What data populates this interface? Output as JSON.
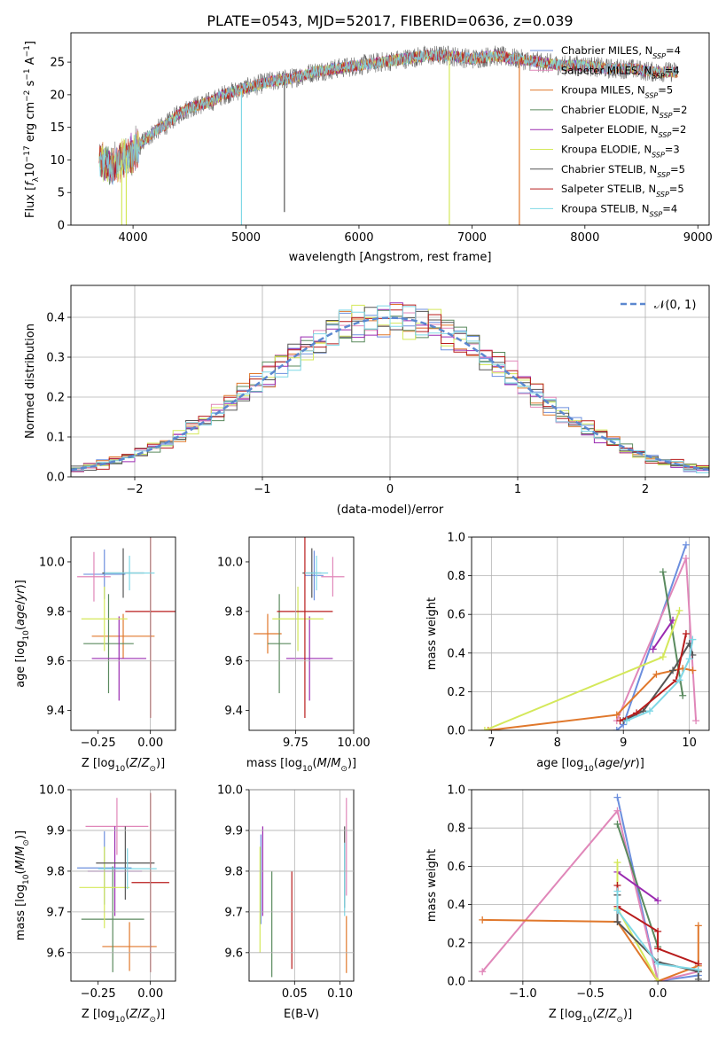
{
  "figure": {
    "title": "PLATE=0543, MJD=52017, FIBERID=0636, z=0.039"
  },
  "series_colors": {
    "chabrier_miles": "#6c8fde",
    "salpeter_miles": "#e087b9",
    "kroupa_miles": "#e0782c",
    "chabrier_elodie": "#5a8a5e",
    "salpeter_elodie": "#9a2ab0",
    "kroupa_elodie": "#d4e85a",
    "chabrier_stelib": "#555555",
    "salpeter_stelib": "#b81c1c",
    "kroupa_stelib": "#7fd8e6"
  },
  "chart_data": [
    {
      "type": "line",
      "title": "PLATE=0543, MJD=52017, FIBERID=0636, z=0.039",
      "xlabel": "wavelength [Angstrom, rest frame]",
      "ylabel": "Flux [f_λ 10^-17 erg cm^-2 s^-1 A^-1]",
      "xlim": [
        3450,
        9100
      ],
      "ylim": [
        0,
        29.5
      ],
      "xticks": [
        4000,
        5000,
        6000,
        7000,
        8000,
        9000
      ],
      "yticks": [
        0,
        5,
        10,
        15,
        20,
        25
      ],
      "legend_position": "right",
      "spectrum_envelope": {
        "x": [
          3700,
          3800,
          3900,
          4000,
          4100,
          4200,
          4300,
          4400,
          4500,
          4600,
          4700,
          4800,
          4900,
          5000,
          5200,
          5400,
          5600,
          5800,
          6000,
          6200,
          6400,
          6600,
          6800,
          7000,
          7200,
          7400,
          7600,
          7800,
          8000,
          8200,
          8400,
          8600,
          8800
        ],
        "y": [
          10,
          9,
          10,
          11,
          13,
          14.5,
          15.5,
          17,
          18,
          18.5,
          19,
          20,
          20.5,
          21,
          22,
          22.5,
          23.5,
          24,
          24.5,
          25,
          25.5,
          26,
          26,
          25.5,
          26,
          25.5,
          25,
          24.5,
          24.5,
          24,
          24,
          23.5,
          23.5
        ]
      },
      "series": [
        {
          "name": "Chabrier MILES, N_SSP=4",
          "color": "#6c8fde"
        },
        {
          "name": "Salpeter MILES, N_SSP=4",
          "color": "#e087b9"
        },
        {
          "name": "Kroupa MILES, N_SSP=5",
          "color": "#e0782c"
        },
        {
          "name": "Chabrier ELODIE, N_SSP=2",
          "color": "#5a8a5e"
        },
        {
          "name": "Salpeter ELODIE, N_SSP=2",
          "color": "#9a2ab0"
        },
        {
          "name": "Kroupa ELODIE, N_SSP=3",
          "color": "#d4e85a"
        },
        {
          "name": "Chabrier STELIB, N_SSP=5",
          "color": "#555555"
        },
        {
          "name": "Salpeter STELIB, N_SSP=5",
          "color": "#b81c1c"
        },
        {
          "name": "Kroupa STELIB, N_SSP=4",
          "color": "#7fd8e6"
        }
      ]
    },
    {
      "type": "line",
      "xlabel": "(data-model)/error",
      "ylabel": "Normed distribution",
      "xlim": [
        -2.5,
        2.5
      ],
      "ylim": [
        0,
        0.48
      ],
      "xticks": [
        -2,
        -1,
        0,
        1,
        2
      ],
      "yticks": [
        0.0,
        0.1,
        0.2,
        0.3,
        0.4
      ],
      "legend_label": "𝒩(0, 1)",
      "legend_position": "top-right",
      "grid": true,
      "histogram_bin_width": 0.1,
      "histogram_bin_start": -2.5
    },
    {
      "type": "scatter",
      "xlabel": "Z [log10(Z/Z⊙)]",
      "ylabel": "age  [log10(age/yr)]",
      "xlim": [
        -0.38,
        0.12
      ],
      "ylim": [
        9.32,
        10.1
      ],
      "xticks": [
        -0.25,
        0.0
      ],
      "yticks": [
        9.4,
        9.6,
        9.8,
        10.0
      ],
      "points": [
        {
          "series": "Chabrier MILES",
          "x": -0.22,
          "y": 9.95,
          "xerr": 0.1,
          "yerr": 0.1
        },
        {
          "series": "Salpeter MILES",
          "x": -0.27,
          "y": 9.94,
          "xerr": 0.08,
          "yerr": 0.1
        },
        {
          "series": "Kroupa MILES",
          "x": -0.13,
          "y": 9.7,
          "xerr": 0.15,
          "yerr": 0.09
        },
        {
          "series": "Chabrier ELODIE",
          "x": -0.2,
          "y": 9.67,
          "xerr": 0.12,
          "yerr": 0.2
        },
        {
          "series": "Salpeter ELODIE",
          "x": -0.15,
          "y": 9.61,
          "xerr": 0.13,
          "yerr": 0.17
        },
        {
          "series": "Kroupa ELODIE",
          "x": -0.22,
          "y": 9.77,
          "xerr": 0.11,
          "yerr": 0.13
        },
        {
          "series": "Chabrier STELIB",
          "x": -0.13,
          "y": 9.955,
          "xerr": 0.1,
          "yerr": 0.1
        },
        {
          "series": "Salpeter STELIB",
          "x": 0.0,
          "y": 9.8,
          "xerr": 0.12,
          "yerr": 0.43
        },
        {
          "series": "Kroupa STELIB",
          "x": -0.1,
          "y": 9.955,
          "xerr": 0.12,
          "yerr": 0.07
        }
      ]
    },
    {
      "type": "scatter",
      "xlabel": "mass [log10(M/M⊙)]",
      "ylabel": "",
      "xlim": [
        9.55,
        10.0
      ],
      "ylim": [
        9.32,
        10.1
      ],
      "xticks": [
        9.75,
        10.0
      ],
      "yticks": [
        9.4,
        9.6,
        9.8,
        10.0
      ],
      "points": [
        {
          "series": "Chabrier MILES",
          "x": 9.83,
          "y": 9.945,
          "xerr": 0.04,
          "yerr": 0.1
        },
        {
          "series": "Salpeter MILES",
          "x": 9.91,
          "y": 9.94,
          "xerr": 0.05,
          "yerr": 0.08
        },
        {
          "series": "Kroupa MILES",
          "x": 9.63,
          "y": 9.71,
          "xerr": 0.06,
          "yerr": 0.08
        },
        {
          "series": "Chabrier ELODIE",
          "x": 9.68,
          "y": 9.67,
          "xerr": 0.05,
          "yerr": 0.2
        },
        {
          "series": "Salpeter ELODIE",
          "x": 9.81,
          "y": 9.61,
          "xerr": 0.1,
          "yerr": 0.17
        },
        {
          "series": "Kroupa ELODIE",
          "x": 9.76,
          "y": 9.77,
          "xerr": 0.11,
          "yerr": 0.13
        },
        {
          "series": "Chabrier STELIB",
          "x": 9.82,
          "y": 9.955,
          "xerr": 0.04,
          "yerr": 0.1
        },
        {
          "series": "Salpeter STELIB",
          "x": 9.79,
          "y": 9.8,
          "xerr": 0.12,
          "yerr": 0.43
        },
        {
          "series": "Kroupa STELIB",
          "x": 9.84,
          "y": 9.955,
          "xerr": 0.05,
          "yerr": 0.07
        }
      ]
    },
    {
      "type": "line",
      "xlabel": "age  [log10(age/yr)]",
      "ylabel": "mass weight",
      "xlim": [
        6.7,
        10.3
      ],
      "ylim": [
        0,
        1.0
      ],
      "xticks": [
        7,
        8,
        9,
        10
      ],
      "yticks": [
        0.0,
        0.2,
        0.4,
        0.6,
        0.8,
        1.0
      ],
      "grid": true,
      "series": [
        {
          "name": "Chabrier MILES",
          "color": "#6c8fde",
          "x": [
            8.9,
            9.0,
            9.95
          ],
          "y": [
            0.0,
            0.03,
            0.96
          ]
        },
        {
          "name": "Salpeter MILES",
          "color": "#e087b9",
          "x": [
            8.9,
            9.95,
            10.1
          ],
          "y": [
            0.05,
            0.89,
            0.05
          ]
        },
        {
          "name": "Kroupa MILES",
          "color": "#e0782c",
          "x": [
            6.95,
            8.9,
            9.5,
            9.9,
            10.05
          ],
          "y": [
            0.0,
            0.08,
            0.29,
            0.32,
            0.31
          ]
        },
        {
          "name": "Chabrier ELODIE",
          "color": "#5a8a5e",
          "x": [
            9.6,
            9.9
          ],
          "y": [
            0.82,
            0.18
          ]
        },
        {
          "name": "Salpeter ELODIE",
          "color": "#9a2ab0",
          "x": [
            9.45,
            9.75
          ],
          "y": [
            0.42,
            0.57
          ]
        },
        {
          "name": "Kroupa ELODIE",
          "color": "#d4e85a",
          "x": [
            6.9,
            9.6,
            9.85
          ],
          "y": [
            0.0,
            0.38,
            0.62
          ]
        },
        {
          "name": "Chabrier STELIB",
          "color": "#555555",
          "x": [
            9.0,
            9.3,
            9.75,
            10.0,
            10.05
          ],
          "y": [
            0.05,
            0.1,
            0.31,
            0.45,
            0.39
          ]
        },
        {
          "name": "Salpeter STELIB",
          "color": "#b81c1c",
          "x": [
            8.95,
            9.2,
            9.8,
            9.95
          ],
          "y": [
            0.05,
            0.09,
            0.26,
            0.5
          ]
        },
        {
          "name": "Kroupa STELIB",
          "color": "#7fd8e6",
          "x": [
            9.05,
            9.4,
            9.85,
            10.0,
            10.05
          ],
          "y": [
            0.05,
            0.1,
            0.26,
            0.37,
            0.47
          ]
        }
      ]
    },
    {
      "type": "scatter",
      "xlabel": "Z [log10(Z/Z⊙)]",
      "ylabel": "mass [log10(M/M⊙)]",
      "xlim": [
        -0.38,
        0.12
      ],
      "ylim": [
        9.53,
        10.0
      ],
      "xticks": [
        -0.25,
        0.0
      ],
      "yticks": [
        9.6,
        9.7,
        9.8,
        9.9,
        10.0
      ],
      "points": [
        {
          "series": "Chabrier MILES",
          "x": -0.22,
          "y": 9.808,
          "xerr": 0.13,
          "yerr": 0.09
        },
        {
          "series": "Salpeter MILES",
          "x": -0.16,
          "y": 9.91,
          "xerr": 0.15,
          "yerr": 0.07
        },
        {
          "series": "Kroupa MILES",
          "x": -0.1,
          "y": 9.615,
          "xerr": 0.13,
          "yerr": 0.06
        },
        {
          "series": "Chabrier ELODIE",
          "x": -0.18,
          "y": 9.682,
          "xerr": 0.15,
          "yerr": 0.13
        },
        {
          "series": "Salpeter ELODIE",
          "x": -0.17,
          "y": 9.8,
          "xerr": 0.13,
          "yerr": 0.11
        },
        {
          "series": "Kroupa ELODIE",
          "x": -0.22,
          "y": 9.76,
          "xerr": 0.12,
          "yerr": 0.1
        },
        {
          "series": "Chabrier STELIB",
          "x": -0.12,
          "y": 9.82,
          "xerr": 0.14,
          "yerr": 0.09
        },
        {
          "series": "Salpeter STELIB",
          "x": 0.0,
          "y": 9.772,
          "xerr": 0.09,
          "yerr": 0.22
        },
        {
          "series": "Kroupa STELIB",
          "x": -0.11,
          "y": 9.806,
          "xerr": 0.14,
          "yerr": 0.05
        }
      ]
    },
    {
      "type": "scatter",
      "xlabel": "E(B-V)",
      "ylabel": "",
      "xlim": [
        0.0,
        0.115
      ],
      "ylim": [
        9.53,
        10.0
      ],
      "xticks": [
        0.05,
        0.1
      ],
      "yticks": [
        9.6,
        9.7,
        9.8,
        9.9,
        10.0
      ],
      "points": [
        {
          "series": "Chabrier MILES",
          "x": 0.013,
          "y": 9.78,
          "yerr": 0.11
        },
        {
          "series": "Salpeter MILES",
          "x": 0.107,
          "y": 9.86,
          "yerr": 0.12
        },
        {
          "series": "Kroupa MILES",
          "x": 0.107,
          "y": 9.62,
          "yerr": 0.07
        },
        {
          "series": "Chabrier ELODIE",
          "x": 0.025,
          "y": 9.67,
          "yerr": 0.13
        },
        {
          "series": "Salpeter ELODIE",
          "x": 0.015,
          "y": 9.8,
          "yerr": 0.11
        },
        {
          "series": "Kroupa ELODIE",
          "x": 0.012,
          "y": 9.73,
          "yerr": 0.13
        },
        {
          "series": "Chabrier STELIB",
          "x": 0.105,
          "y": 9.81,
          "yerr": 0.1
        },
        {
          "series": "Salpeter STELIB",
          "x": 0.047,
          "y": 9.68,
          "yerr": 0.12
        },
        {
          "series": "Kroupa STELIB",
          "x": 0.105,
          "y": 9.78,
          "yerr": 0.09
        }
      ]
    },
    {
      "type": "line",
      "xlabel": "Z [log10(Z/Z⊙)]",
      "ylabel": "mass weight",
      "xlim": [
        -1.38,
        0.38
      ],
      "ylim": [
        0,
        1.0
      ],
      "xticks": [
        -1.0,
        -0.5,
        0.0
      ],
      "yticks": [
        0.0,
        0.2,
        0.4,
        0.6,
        0.8,
        1.0
      ],
      "grid": true,
      "series": [
        {
          "name": "Chabrier MILES",
          "color": "#6c8fde",
          "x": [
            -0.3,
            0.0,
            0.3
          ],
          "y": [
            0.96,
            0.0,
            0.03
          ]
        },
        {
          "name": "Salpeter MILES",
          "color": "#e087b9",
          "x": [
            -1.3,
            -0.3,
            0.0,
            0.3
          ],
          "y": [
            0.05,
            0.89,
            0.0,
            0.05
          ]
        },
        {
          "name": "Kroupa MILES",
          "color": "#e0782c",
          "x": [
            -1.3,
            -0.3,
            0.0,
            0.3,
            0.3
          ],
          "y": [
            0.32,
            0.31,
            0.0,
            0.08,
            0.29
          ]
        },
        {
          "name": "Chabrier ELODIE",
          "color": "#5a8a5e",
          "x": [
            -0.3,
            0.0
          ],
          "y": [
            0.82,
            0.18
          ]
        },
        {
          "name": "Salpeter ELODIE",
          "color": "#9a2ab0",
          "x": [
            -0.3,
            0.0
          ],
          "y": [
            0.57,
            0.42
          ]
        },
        {
          "name": "Kroupa ELODIE",
          "color": "#d4e85a",
          "x": [
            -0.3,
            -0.3,
            0.0
          ],
          "y": [
            0.62,
            0.38,
            0.0
          ]
        },
        {
          "name": "Chabrier STELIB",
          "color": "#555555",
          "x": [
            -0.3,
            -0.3,
            0.0,
            0.3,
            0.3
          ],
          "y": [
            0.45,
            0.31,
            0.1,
            0.05,
            0.01
          ]
        },
        {
          "name": "Salpeter STELIB",
          "color": "#b81c1c",
          "x": [
            -0.3,
            -0.3,
            0.0,
            0.0,
            0.3
          ],
          "y": [
            0.5,
            0.39,
            0.26,
            0.17,
            0.09
          ]
        },
        {
          "name": "Kroupa STELIB",
          "color": "#7fd8e6",
          "x": [
            -0.3,
            -0.3,
            0.0,
            0.3
          ],
          "y": [
            0.47,
            0.37,
            0.09,
            0.06
          ]
        }
      ]
    }
  ]
}
